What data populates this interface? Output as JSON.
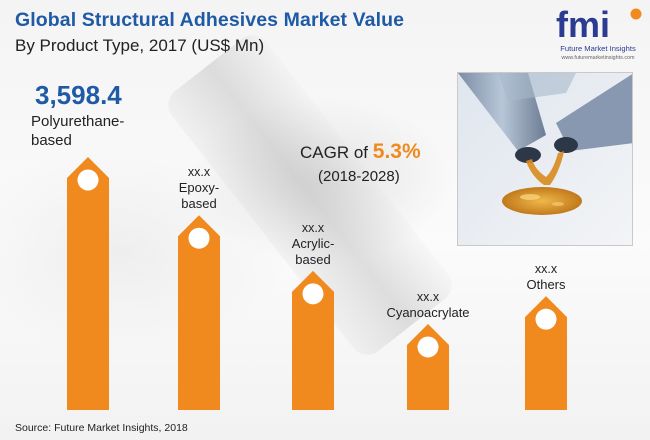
{
  "header": {
    "title": "Global Structural Adhesives Market Value",
    "subtitle": "By Product Type, 2017 (US$ Mn)"
  },
  "logo": {
    "text": "fmi",
    "name": "Future Market Insights",
    "url": "www.futuremarketinsights.com"
  },
  "cagr": {
    "prefix": "CAGR of",
    "value": "5.3%",
    "period": "(2018-2028)"
  },
  "source": "Source: Future Market Insights, 2018",
  "colors": {
    "bar": "#f18a1e",
    "title": "#1f5aa6",
    "accent": "#f18a1e"
  },
  "chart_data": {
    "type": "bar",
    "title": "Global Structural Adhesives Market Value",
    "subtitle": "By Product Type, 2017 (US$ Mn)",
    "categories": [
      "Polyurethane-based",
      "Epoxy-based",
      "Acrylic-based",
      "Cyanoacrylate",
      "Others"
    ],
    "value_labels": [
      "3,598.4",
      "xx.x",
      "xx.x",
      "xx.x",
      "xx.x"
    ],
    "category_lines": [
      [
        "Polyurethane-",
        "based"
      ],
      [
        "Epoxy-",
        "based"
      ],
      [
        "Acrylic-",
        "based"
      ],
      [
        "Cyanoacrylate"
      ],
      [
        "Others"
      ]
    ],
    "values": [
      3598.4,
      null,
      null,
      null,
      null
    ],
    "relative_heights": [
      1.0,
      0.77,
      0.55,
      0.34,
      0.45
    ],
    "grid": false,
    "legend": "none"
  }
}
